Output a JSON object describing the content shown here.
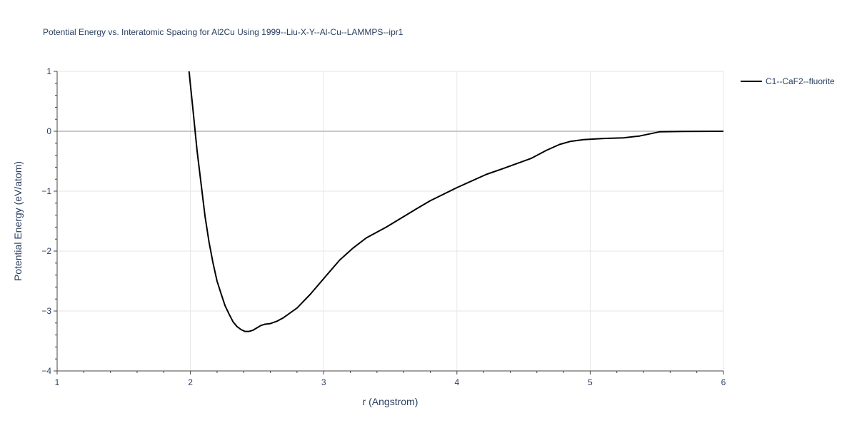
{
  "chart_data": {
    "type": "line",
    "title": "Potential Energy vs. Interatomic Spacing for Al2Cu Using 1999--Liu-X-Y--Al-Cu--LAMMPS--ipr1",
    "xlabel": "r (Angstrom)",
    "ylabel": "Potential Energy (eV/atom)",
    "xlim": [
      1,
      6
    ],
    "ylim": [
      -4,
      1
    ],
    "x_ticks": [
      1,
      2,
      3,
      4,
      5,
      6
    ],
    "y_ticks": [
      1,
      0,
      -1,
      -2,
      -3,
      -4
    ],
    "x_tick_labels": [
      "1",
      "2",
      "3",
      "4",
      "5",
      "6"
    ],
    "y_tick_labels": [
      "1",
      "0",
      "−1",
      "−2",
      "−3",
      "−4"
    ],
    "grid": true,
    "legend_position": "top-right",
    "series": [
      {
        "name": "C1--CaF2--fluorite",
        "color": "#000000",
        "x": [
          1.99,
          2.02,
          2.05,
          2.08,
          2.11,
          2.14,
          2.17,
          2.2,
          2.23,
          2.26,
          2.29,
          2.32,
          2.35,
          2.38,
          2.41,
          2.44,
          2.47,
          2.5,
          2.53,
          2.56,
          2.6,
          2.65,
          2.7,
          2.75,
          2.8,
          2.9,
          3.0,
          3.12,
          3.22,
          3.32,
          3.47,
          3.7,
          3.8,
          4.0,
          4.22,
          4.35,
          4.56,
          4.67,
          4.77,
          4.85,
          4.95,
          5.1,
          5.25,
          5.37,
          5.52,
          5.7,
          6.0
        ],
        "y": [
          1.0,
          0.35,
          -0.32,
          -0.87,
          -1.42,
          -1.85,
          -2.2,
          -2.5,
          -2.71,
          -2.91,
          -3.05,
          -3.18,
          -3.26,
          -3.31,
          -3.34,
          -3.34,
          -3.32,
          -3.28,
          -3.24,
          -3.22,
          -3.21,
          -3.17,
          -3.11,
          -3.03,
          -2.95,
          -2.72,
          -2.46,
          -2.15,
          -1.95,
          -1.78,
          -1.6,
          -1.29,
          -1.16,
          -0.94,
          -0.72,
          -0.62,
          -0.45,
          -0.32,
          -0.22,
          -0.17,
          -0.14,
          -0.12,
          -0.11,
          -0.08,
          -0.01,
          -0.002,
          0.0
        ]
      }
    ]
  }
}
